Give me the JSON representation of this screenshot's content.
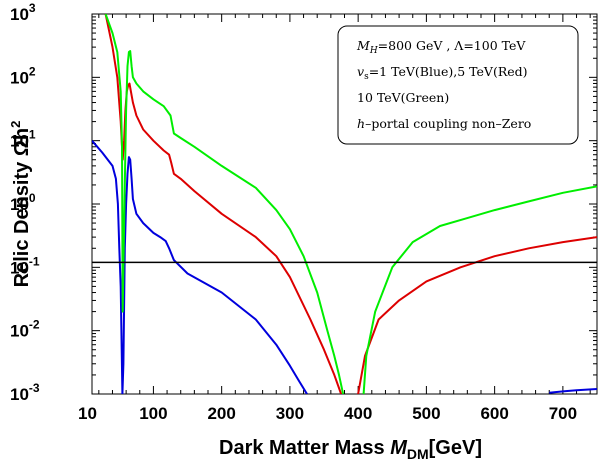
{
  "chart_data": {
    "type": "line",
    "title": "",
    "xlabel_main": "Dark Matter Mass ",
    "xlabel_symbol": "M",
    "xlabel_sub": "DM",
    "xlabel_unit": "[GeV]",
    "ylabel": "Relic Density Ωh",
    "ylabel_sup": "2",
    "xlim": [
      10,
      750
    ],
    "ylim_log10": [
      -3,
      3
    ],
    "x_ticks": [
      10,
      100,
      200,
      300,
      400,
      500,
      600,
      700
    ],
    "x_tick_labels": [
      "10",
      "100",
      "200",
      "300",
      "400",
      "500",
      "600",
      "700"
    ],
    "y_ticks_log10": [
      -3,
      -2,
      -1,
      0,
      1,
      2,
      3
    ],
    "y_tick_bases": [
      "10",
      "10",
      "10",
      "10",
      "10",
      "10",
      "10"
    ],
    "y_tick_exps": [
      "-3",
      "-2",
      "-1",
      "0",
      "1",
      "2",
      "3"
    ],
    "reference_line": {
      "y": 0.12,
      "color": "#000000"
    },
    "legend": {
      "placement": "top-right",
      "lines": [
        [
          "M",
          "H",
          "=800 GeV , Λ=100 TeV"
        ],
        [
          "v",
          "s",
          "=1 TeV(Blue),5 TeV(Red)"
        ],
        [
          "",
          "",
          "10 TeV(Green)"
        ],
        [
          "h",
          "",
          "–portal coupling non–Zero"
        ]
      ]
    },
    "series": [
      {
        "name": "v_s = 1 TeV",
        "color": "#0000dd",
        "points": [
          [
            10,
            10
          ],
          [
            25,
            6.5
          ],
          [
            40,
            4
          ],
          [
            45,
            2.5
          ],
          [
            48,
            1
          ],
          [
            50,
            0.2
          ],
          [
            52,
            0.05
          ],
          [
            53.5,
            0.005
          ],
          [
            54.5,
            0.001
          ],
          [
            56,
            0.003
          ],
          [
            58,
            0.2
          ],
          [
            60,
            1
          ],
          [
            62,
            3
          ],
          [
            64,
            5.5
          ],
          [
            66,
            5
          ],
          [
            68,
            2.5
          ],
          [
            70,
            1.2
          ],
          [
            75,
            0.7
          ],
          [
            85,
            0.5
          ],
          [
            100,
            0.35
          ],
          [
            110,
            0.3
          ],
          [
            118,
            0.26
          ],
          [
            123,
            0.2
          ],
          [
            130,
            0.13
          ],
          [
            150,
            0.08
          ],
          [
            200,
            0.04
          ],
          [
            250,
            0.015
          ],
          [
            280,
            0.006
          ],
          [
            300,
            0.0028
          ],
          [
            315,
            0.0015
          ],
          [
            325,
            0.001
          ]
        ],
        "tail": [
          [
            680,
            0.00105
          ],
          [
            700,
            0.0011
          ],
          [
            720,
            0.00115
          ],
          [
            750,
            0.0012
          ]
        ]
      },
      {
        "name": "v_s = 5 TeV",
        "color": "#dd0000",
        "points": [
          [
            30,
            1000
          ],
          [
            40,
            300
          ],
          [
            47,
            100
          ],
          [
            52,
            20
          ],
          [
            55,
            5
          ],
          [
            57,
            10
          ],
          [
            59,
            30
          ],
          [
            61,
            60
          ],
          [
            63,
            75
          ],
          [
            65,
            80
          ],
          [
            67,
            60
          ],
          [
            70,
            40
          ],
          [
            75,
            25
          ],
          [
            85,
            15
          ],
          [
            100,
            10
          ],
          [
            115,
            7
          ],
          [
            123,
            6
          ],
          [
            126,
            4.5
          ],
          [
            130,
            3
          ],
          [
            140,
            2.5
          ],
          [
            160,
            1.6
          ],
          [
            200,
            0.7
          ],
          [
            250,
            0.3
          ],
          [
            280,
            0.15
          ],
          [
            300,
            0.07
          ],
          [
            330,
            0.015
          ],
          [
            350,
            0.005
          ],
          [
            365,
            0.002
          ],
          [
            375,
            0.001
          ]
        ],
        "tail": [
          [
            400,
            0.001
          ],
          [
            410,
            0.004
          ],
          [
            430,
            0.015
          ],
          [
            460,
            0.03
          ],
          [
            500,
            0.06
          ],
          [
            550,
            0.1
          ],
          [
            600,
            0.15
          ],
          [
            650,
            0.2
          ],
          [
            700,
            0.25
          ],
          [
            750,
            0.3
          ]
        ]
      },
      {
        "name": "v_s = 10 TeV",
        "color": "#00ee00",
        "points": [
          [
            30,
            1000
          ],
          [
            40,
            500
          ],
          [
            47,
            250
          ],
          [
            52,
            60
          ],
          [
            54,
            8
          ],
          [
            55,
            0.02
          ],
          [
            56,
            0.1
          ],
          [
            58,
            2
          ],
          [
            60,
            30
          ],
          [
            62,
            150
          ],
          [
            64,
            250
          ],
          [
            66,
            260
          ],
          [
            68,
            150
          ],
          [
            70,
            100
          ],
          [
            75,
            80
          ],
          [
            85,
            60
          ],
          [
            100,
            45
          ],
          [
            115,
            35
          ],
          [
            125,
            25
          ],
          [
            130,
            13
          ],
          [
            140,
            11
          ],
          [
            160,
            8
          ],
          [
            200,
            4
          ],
          [
            250,
            1.8
          ],
          [
            280,
            0.8
          ],
          [
            300,
            0.4
          ],
          [
            320,
            0.15
          ],
          [
            340,
            0.04
          ],
          [
            355,
            0.01
          ],
          [
            365,
            0.004
          ],
          [
            372,
            0.002
          ],
          [
            378,
            0.001
          ]
        ],
        "tail": [
          [
            408,
            0.001
          ],
          [
            412,
            0.004
          ],
          [
            425,
            0.02
          ],
          [
            450,
            0.1
          ],
          [
            480,
            0.25
          ],
          [
            520,
            0.45
          ],
          [
            560,
            0.6
          ],
          [
            600,
            0.8
          ],
          [
            650,
            1.1
          ],
          [
            700,
            1.5
          ],
          [
            750,
            1.9
          ]
        ]
      }
    ]
  }
}
